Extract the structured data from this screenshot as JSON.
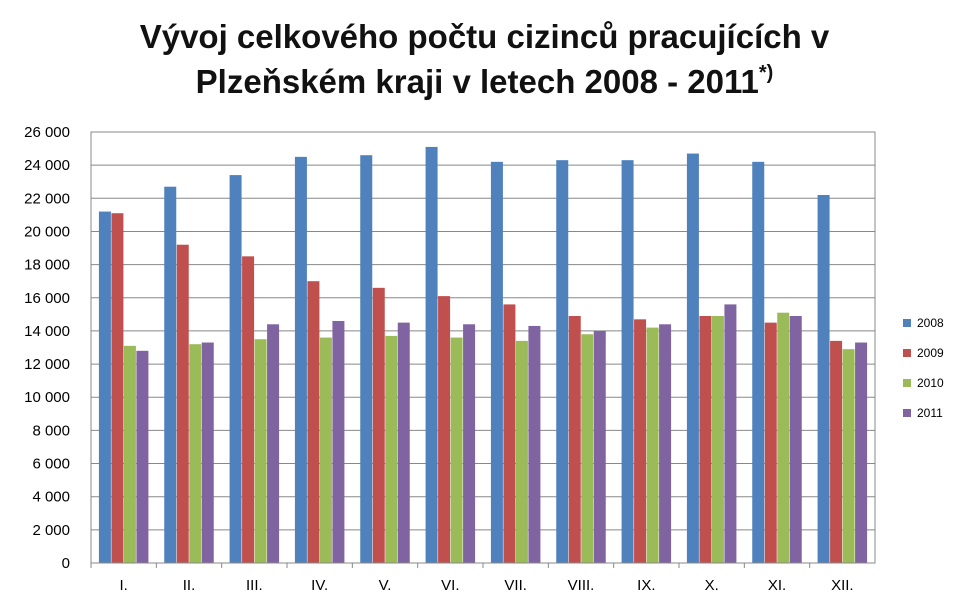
{
  "chart_data": {
    "type": "bar",
    "title_line1": "Vývoj celkového počtu cizinců pracujících v",
    "title_line2": "Plzeňském kraji v letech 2008 - 2011",
    "title_note": "*)",
    "categories": [
      "I.",
      "II.",
      "III.",
      "IV.",
      "V.",
      "VI.",
      "VII.",
      "VIII.",
      "IX.",
      "X.",
      "XI.",
      "XII."
    ],
    "series": [
      {
        "name": "2008",
        "color": "#4F81BD",
        "values": [
          21200,
          22700,
          23400,
          24500,
          24600,
          25100,
          24200,
          24300,
          24300,
          24700,
          24200,
          22200
        ]
      },
      {
        "name": "2009",
        "color": "#C0504D",
        "values": [
          21100,
          19200,
          18500,
          17000,
          16600,
          16100,
          15600,
          14900,
          14700,
          14900,
          14500,
          13400
        ]
      },
      {
        "name": "2010",
        "color": "#9BBB59",
        "values": [
          13100,
          13200,
          13500,
          13600,
          13700,
          13600,
          13400,
          13800,
          14200,
          14900,
          15100,
          12900
        ]
      },
      {
        "name": "2011",
        "color": "#8064A2",
        "values": [
          12800,
          13300,
          14400,
          14600,
          14500,
          14400,
          14300,
          14000,
          14400,
          15600,
          14900,
          13300
        ]
      }
    ],
    "ylim": [
      0,
      26000
    ],
    "ytick_labels": [
      "0",
      "2 000",
      "4 000",
      "6 000",
      "8 000",
      "10 000",
      "12 000",
      "14 000",
      "16 000",
      "18 000",
      "20 000",
      "22 000",
      "24 000",
      "26 000"
    ],
    "grid": true,
    "legend_position": "right"
  }
}
